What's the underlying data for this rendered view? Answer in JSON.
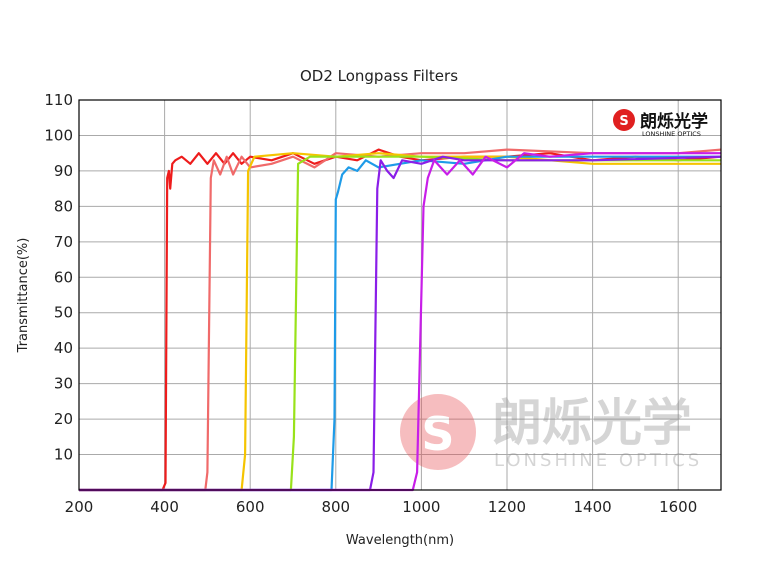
{
  "chart_data": {
    "type": "line",
    "title": "OD2 Longpass Filters",
    "xlabel": "Wavelength(nm)",
    "ylabel": "Transmittance(%)",
    "xlim": [
      200,
      1700
    ],
    "ylim": [
      0,
      110
    ],
    "xticks": [
      200,
      400,
      600,
      800,
      1000,
      1200,
      1400,
      1600
    ],
    "yticks": [
      10,
      20,
      30,
      40,
      50,
      60,
      70,
      80,
      90,
      100,
      110
    ],
    "grid": true,
    "series": [
      {
        "color": "#ee1c1c",
        "points": [
          [
            200,
            0
          ],
          [
            395,
            0
          ],
          [
            402,
            2
          ],
          [
            406,
            88
          ],
          [
            410,
            90
          ],
          [
            413,
            85
          ],
          [
            418,
            92
          ],
          [
            425,
            93
          ],
          [
            440,
            94
          ],
          [
            460,
            92
          ],
          [
            480,
            95
          ],
          [
            500,
            92
          ],
          [
            520,
            95
          ],
          [
            540,
            92
          ],
          [
            560,
            95
          ],
          [
            580,
            92
          ],
          [
            600,
            94
          ],
          [
            650,
            93
          ],
          [
            700,
            95
          ],
          [
            750,
            92
          ],
          [
            800,
            94
          ],
          [
            850,
            93
          ],
          [
            900,
            96
          ],
          [
            950,
            94
          ],
          [
            1000,
            93
          ],
          [
            1100,
            94
          ],
          [
            1200,
            94
          ],
          [
            1300,
            95
          ],
          [
            1400,
            93
          ],
          [
            1500,
            94
          ],
          [
            1600,
            93
          ],
          [
            1700,
            94
          ]
        ]
      },
      {
        "color": "#f06a6a",
        "points": [
          [
            200,
            0
          ],
          [
            495,
            0
          ],
          [
            500,
            5
          ],
          [
            508,
            88
          ],
          [
            515,
            93
          ],
          [
            530,
            89
          ],
          [
            545,
            94
          ],
          [
            560,
            89
          ],
          [
            580,
            94
          ],
          [
            600,
            91
          ],
          [
            650,
            92
          ],
          [
            700,
            94
          ],
          [
            750,
            91
          ],
          [
            800,
            95
          ],
          [
            900,
            94
          ],
          [
            1000,
            95
          ],
          [
            1100,
            95
          ],
          [
            1200,
            96
          ],
          [
            1400,
            95
          ],
          [
            1600,
            95
          ],
          [
            1700,
            96
          ]
        ]
      },
      {
        "color": "#f5c400",
        "points": [
          [
            200,
            0
          ],
          [
            580,
            0
          ],
          [
            588,
            10
          ],
          [
            595,
            90
          ],
          [
            610,
            94
          ],
          [
            700,
            95
          ],
          [
            800,
            94
          ],
          [
            900,
            95
          ],
          [
            1000,
            94
          ],
          [
            1200,
            94
          ],
          [
            1400,
            92
          ],
          [
            1600,
            92
          ],
          [
            1700,
            92
          ]
        ]
      },
      {
        "color": "#99e21a",
        "points": [
          [
            200,
            0
          ],
          [
            695,
            0
          ],
          [
            702,
            15
          ],
          [
            712,
            92
          ],
          [
            740,
            94
          ],
          [
            800,
            94
          ],
          [
            900,
            94
          ],
          [
            1000,
            94
          ],
          [
            1200,
            93
          ],
          [
            1400,
            93
          ],
          [
            1600,
            93
          ],
          [
            1700,
            93
          ]
        ]
      },
      {
        "color": "#1e9be8",
        "points": [
          [
            200,
            0
          ],
          [
            790,
            0
          ],
          [
            797,
            20
          ],
          [
            800,
            82
          ],
          [
            805,
            84
          ],
          [
            815,
            89
          ],
          [
            830,
            91
          ],
          [
            850,
            90
          ],
          [
            870,
            93
          ],
          [
            900,
            91
          ],
          [
            950,
            92
          ],
          [
            1000,
            93
          ],
          [
            1100,
            92
          ],
          [
            1200,
            94
          ],
          [
            1300,
            94
          ],
          [
            1400,
            94
          ],
          [
            1700,
            94
          ]
        ]
      },
      {
        "color": "#8a1ee8",
        "points": [
          [
            200,
            0
          ],
          [
            880,
            0
          ],
          [
            888,
            5
          ],
          [
            897,
            85
          ],
          [
            905,
            93
          ],
          [
            920,
            90
          ],
          [
            935,
            88
          ],
          [
            955,
            93
          ],
          [
            1000,
            92
          ],
          [
            1050,
            94
          ],
          [
            1100,
            93
          ],
          [
            1200,
            93
          ],
          [
            1300,
            93
          ],
          [
            1400,
            93
          ],
          [
            1700,
            94
          ]
        ]
      },
      {
        "color": "#c81ee8",
        "points": [
          [
            200,
            0
          ],
          [
            980,
            0
          ],
          [
            990,
            5
          ],
          [
            1005,
            80
          ],
          [
            1015,
            88
          ],
          [
            1030,
            93
          ],
          [
            1060,
            89
          ],
          [
            1090,
            93
          ],
          [
            1120,
            89
          ],
          [
            1150,
            94
          ],
          [
            1200,
            91
          ],
          [
            1240,
            95
          ],
          [
            1300,
            94
          ],
          [
            1400,
            95
          ],
          [
            1700,
            95
          ]
        ]
      }
    ],
    "logo": {
      "name_cn": "朗烁光学",
      "name_en": "LONSHINE OPTICS"
    },
    "watermark": {
      "name_cn": "朗烁光学",
      "name_en": "LONSHINE OPTICS"
    }
  }
}
